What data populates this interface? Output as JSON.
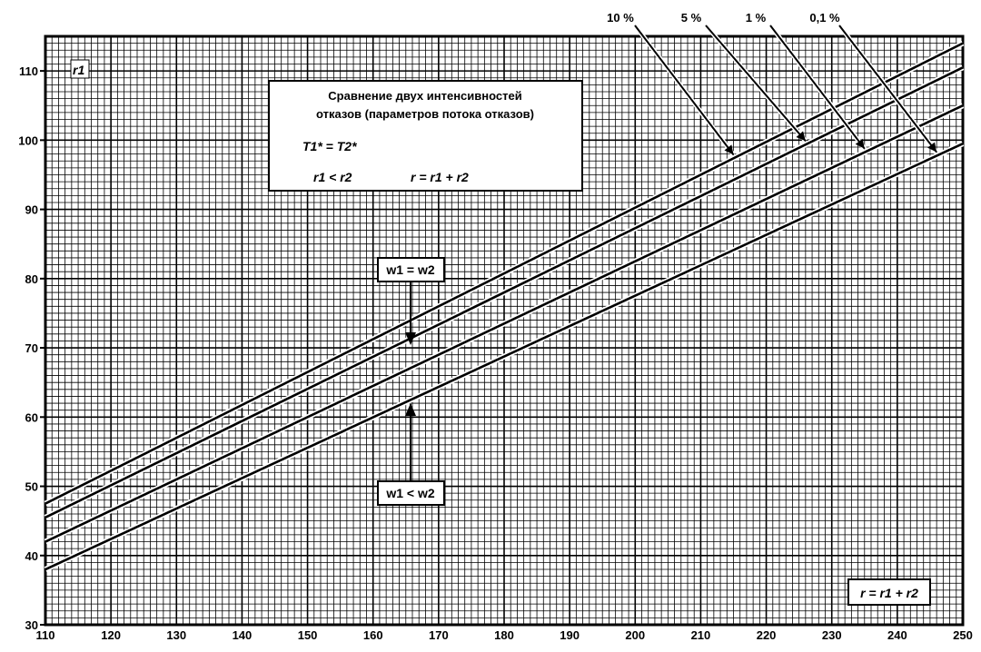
{
  "chart_data": {
    "type": "line",
    "ylabel": "r1",
    "xlabel": "r = r1 + r2",
    "xlim": [
      110,
      250
    ],
    "ylim": [
      30,
      115
    ],
    "grid": true,
    "x_ticks": [
      110,
      120,
      130,
      140,
      150,
      160,
      170,
      180,
      190,
      200,
      210,
      220,
      230,
      240,
      250
    ],
    "x_tick_labels": [
      "110",
      "120",
      "130",
      "140",
      "150",
      "160",
      "170",
      "180",
      "190",
      "200",
      "210",
      "220",
      "230",
      "240",
      "250"
    ],
    "y_ticks": [
      30,
      40,
      50,
      60,
      70,
      80,
      90,
      100,
      110
    ],
    "y_tick_labels": [
      "30",
      "40",
      "50",
      "60",
      "70",
      "80",
      "90",
      "100",
      "110"
    ],
    "series": [
      {
        "name": "10 %",
        "x": [
          110,
          250
        ],
        "y": [
          47.5,
          114
        ]
      },
      {
        "name": "5 %",
        "x": [
          110,
          250
        ],
        "y": [
          45.5,
          110.5
        ]
      },
      {
        "name": "1 %",
        "x": [
          110,
          250
        ],
        "y": [
          42,
          105
        ]
      },
      {
        "name": "0,1 %",
        "x": [
          110,
          250
        ],
        "y": [
          38,
          99.5
        ]
      }
    ],
    "info_box": {
      "title_line1": "Сравнение двух интенсивностей",
      "title_line2": "отказов (параметров потока отказов)",
      "formula1": "T1* = T2*",
      "formula2": "r1 < r2",
      "formula3": "r = r1 + r2"
    },
    "annotations": {
      "equal": "w1 = w2",
      "less": "w1 < w2"
    }
  }
}
